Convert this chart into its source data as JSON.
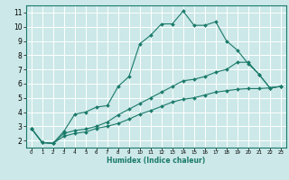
{
  "title": "",
  "xlabel": "Humidex (Indice chaleur)",
  "ylabel": "",
  "bg_color": "#cce8e8",
  "grid_color": "#ffffff",
  "line_color": "#1a7a6a",
  "xlim": [
    -0.5,
    23.5
  ],
  "ylim": [
    1.5,
    11.5
  ],
  "xticks": [
    0,
    1,
    2,
    3,
    4,
    5,
    6,
    7,
    8,
    9,
    10,
    11,
    12,
    13,
    14,
    15,
    16,
    17,
    18,
    19,
    20,
    21,
    22,
    23
  ],
  "yticks": [
    2,
    3,
    4,
    5,
    6,
    7,
    8,
    9,
    10,
    11
  ],
  "line1_x": [
    0,
    1,
    2,
    3,
    4,
    5,
    6,
    7,
    8,
    9,
    10,
    11,
    12,
    13,
    14,
    15,
    16,
    17,
    18,
    19,
    20,
    21,
    22,
    23
  ],
  "line1_y": [
    2.85,
    1.85,
    1.8,
    2.65,
    3.85,
    4.0,
    4.35,
    4.45,
    5.8,
    6.5,
    8.8,
    9.4,
    10.2,
    10.2,
    11.1,
    10.1,
    10.1,
    10.35,
    9.0,
    8.35,
    7.4,
    6.65,
    5.7,
    5.8
  ],
  "line2_x": [
    0,
    1,
    2,
    3,
    4,
    5,
    6,
    7,
    8,
    9,
    10,
    11,
    12,
    13,
    14,
    15,
    16,
    17,
    18,
    19,
    20,
    21,
    22,
    23
  ],
  "line2_y": [
    2.85,
    1.85,
    1.8,
    2.5,
    2.7,
    2.8,
    3.0,
    3.3,
    3.8,
    4.2,
    4.6,
    5.0,
    5.4,
    5.8,
    6.2,
    6.3,
    6.5,
    6.8,
    7.0,
    7.5,
    7.5,
    6.65,
    5.7,
    5.8
  ],
  "line3_x": [
    0,
    1,
    2,
    3,
    4,
    5,
    6,
    7,
    8,
    9,
    10,
    11,
    12,
    13,
    14,
    15,
    16,
    17,
    18,
    19,
    20,
    21,
    22,
    23
  ],
  "line3_y": [
    2.85,
    1.85,
    1.8,
    2.3,
    2.5,
    2.6,
    2.85,
    3.0,
    3.2,
    3.5,
    3.85,
    4.1,
    4.4,
    4.7,
    4.9,
    5.0,
    5.2,
    5.4,
    5.5,
    5.6,
    5.65,
    5.65,
    5.7,
    5.8
  ],
  "tick_fontsize_x": 4.0,
  "tick_fontsize_y": 5.5,
  "xlabel_fontsize": 5.5,
  "marker_size": 2.0,
  "linewidth": 0.8
}
